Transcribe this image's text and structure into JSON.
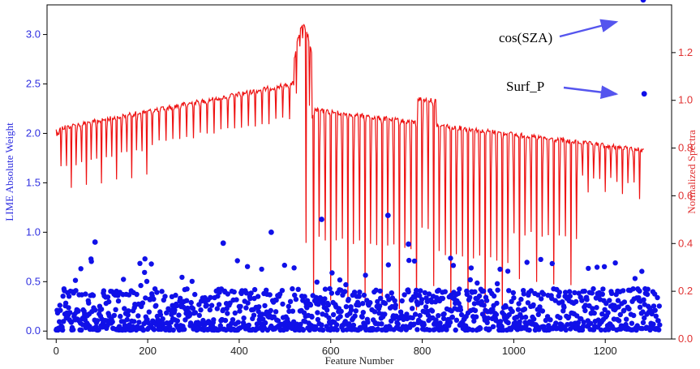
{
  "chart_data": {
    "type": "scatter",
    "title": "",
    "xlabel": "Feature Number",
    "ylabel_left": "LIME Absolute Weight",
    "ylabel_right": "Normalized Spectra",
    "xlim": [
      -20,
      1345
    ],
    "ylim_left": [
      -0.08,
      3.3
    ],
    "ylim_right": [
      0.0,
      1.4
    ],
    "grid": false,
    "colors": {
      "scatter": "#1010e8",
      "spectrum": "#ee1111",
      "left_axis": "#2f2fe0",
      "right_axis": "#e03030",
      "annotation_arrow": "#5555ee"
    },
    "x_ticks": [
      0,
      200,
      400,
      600,
      800,
      1000,
      1200
    ],
    "y_ticks_left": [
      0.0,
      0.5,
      1.0,
      1.5,
      2.0,
      2.5,
      3.0
    ],
    "y_ticks_right": [
      0.0,
      0.2,
      0.4,
      0.6,
      0.8,
      1.0,
      1.2
    ],
    "x_tick_labels": [
      "0",
      "200",
      "400",
      "600",
      "800",
      "1000",
      "1200"
    ],
    "y_tick_labels_left": [
      "0.0",
      "0.5",
      "1.0",
      "1.5",
      "2.0",
      "2.5",
      "3.0"
    ],
    "y_tick_labels_right": [
      "0.0",
      "0.2",
      "0.4",
      "0.6",
      "0.8",
      "1.0",
      "1.2"
    ],
    "scatter_summary": {
      "n_points": 1320,
      "x_range": [
        0,
        1320
      ],
      "typical_max": 0.45,
      "notable_points": [
        {
          "x": 85,
          "y": 0.9
        },
        {
          "x": 365,
          "y": 0.89
        },
        {
          "x": 470,
          "y": 1.0
        },
        {
          "x": 580,
          "y": 1.13
        },
        {
          "x": 725,
          "y": 1.17
        },
        {
          "x": 770,
          "y": 0.88
        },
        {
          "x": 1283,
          "y": 3.35
        },
        {
          "x": 1285,
          "y": 2.4
        }
      ]
    },
    "spectrum_summary": {
      "x_range": [
        0,
        1285
      ],
      "segments": [
        {
          "x_start": 0,
          "x_end": 520,
          "top_start": 0.89,
          "top_end": 1.08,
          "min_dips": 0.6
        },
        {
          "x_start": 520,
          "x_end": 560,
          "peak": 1.32
        },
        {
          "x_start": 560,
          "x_end": 1285,
          "top_start": 0.95,
          "top_end": 0.8,
          "min_dips": 0.08
        }
      ]
    },
    "annotations": [
      {
        "text": "cos(SZA)",
        "target": {
          "x": 1283,
          "y": 3.35
        }
      },
      {
        "text": "Surf_P",
        "target": {
          "x": 1285,
          "y": 2.4
        }
      }
    ]
  }
}
